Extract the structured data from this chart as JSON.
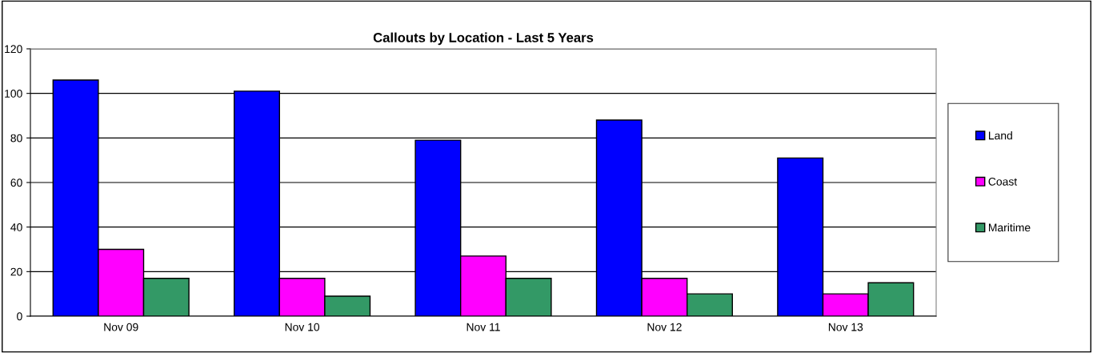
{
  "chart_data": {
    "type": "bar",
    "title": "Callouts by Location - Last 5 Years",
    "categories": [
      "Nov 09",
      "Nov 10",
      "Nov 11",
      "Nov 12",
      "Nov 13"
    ],
    "series": [
      {
        "name": "Land",
        "color": "#0000ff",
        "values": [
          106,
          101,
          79,
          88,
          71
        ]
      },
      {
        "name": "Coast",
        "color": "#ff00ff",
        "values": [
          30,
          17,
          27,
          17,
          10
        ]
      },
      {
        "name": "Maritime",
        "color": "#339966",
        "values": [
          17,
          9,
          17,
          10,
          15
        ]
      }
    ],
    "ylim": [
      0,
      120
    ],
    "yticks": [
      0,
      20,
      40,
      60,
      80,
      100,
      120
    ],
    "grid": "y",
    "legend": "right"
  }
}
